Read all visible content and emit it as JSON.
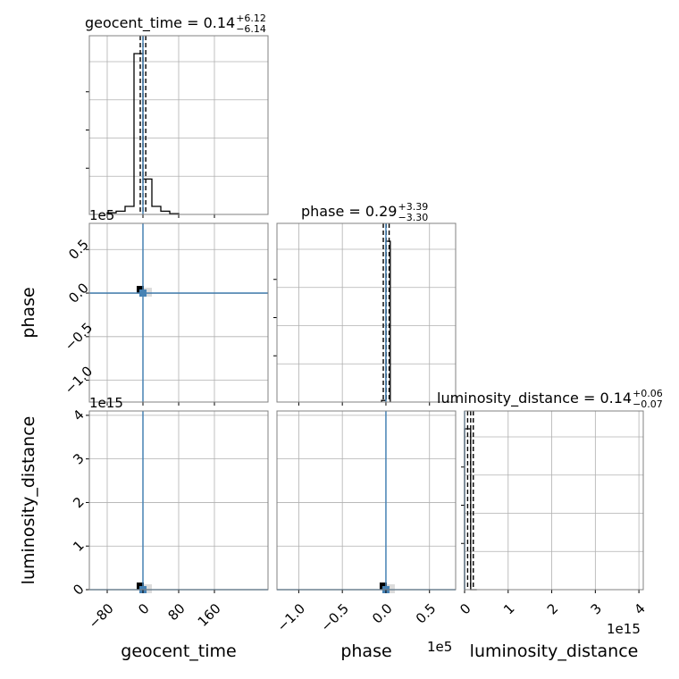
{
  "chart_data": {
    "type": "corner",
    "parameters": [
      "geocent_time",
      "phase",
      "luminosity_distance"
    ],
    "xlabels": [
      "geocent_time",
      "phase",
      "luminosity_distance"
    ],
    "ylabels": [
      "phase",
      "luminosity_distance"
    ],
    "titles": {
      "geocent_time": {
        "label": "geocent_time",
        "median": "0.14",
        "plus": "+6.12",
        "minus": "−6.14"
      },
      "phase": {
        "label": "phase",
        "median": "0.29",
        "plus": "+3.39",
        "minus": "−3.30"
      },
      "luminosity_distance": {
        "label": "luminosity_distance",
        "median": "0.14",
        "plus": "+0.06",
        "minus": "−0.07"
      }
    },
    "axes": {
      "geocent_time": {
        "range": [
          -120,
          280
        ],
        "ticks": [
          -80,
          0,
          80,
          160
        ],
        "tick_labels": [
          "−80",
          "0",
          "80",
          "160"
        ]
      },
      "phase": {
        "range": [
          -125000,
          80000
        ],
        "ticks": [
          -100000,
          -50000,
          0,
          50000
        ],
        "tick_labels": [
          "−1.0",
          "−0.5",
          "0.0",
          "0.5"
        ],
        "offset_text": "1e5"
      },
      "luminosity_distance": {
        "range": [
          0,
          4100000000000000.0
        ],
        "ticks": [
          0,
          1000000000000000.0,
          2000000000000000.0,
          3000000000000000.0,
          4000000000000000.0
        ],
        "tick_labels": [
          "0",
          "1",
          "2",
          "3",
          "4"
        ],
        "offset_text": "1e15"
      }
    },
    "histograms": {
      "geocent_time": {
        "bin_edges": [
          -80,
          -60,
          -40,
          -20,
          0,
          20,
          40,
          60,
          80
        ],
        "counts": [
          0.01,
          0.02,
          0.05,
          1.0,
          0.22,
          0.05,
          0.02,
          0.005
        ],
        "quantiles": [
          -6,
          0.14,
          6.26
        ]
      },
      "phase": {
        "bin_edges": [
          -5000,
          0,
          5000
        ],
        "counts": [
          0.01,
          1.0
        ],
        "quantiles": [
          -3000,
          290,
          3700
        ]
      },
      "luminosity_distance": {
        "bin_edges": [
          0,
          140000000000000.0,
          280000000000000.0
        ],
        "counts": [
          1.0,
          0.0
        ],
        "quantiles": [
          70000000000000.0,
          140000000000000.0,
          200000000000000.0
        ]
      }
    },
    "truths": {
      "geocent_time": 0,
      "phase": 0,
      "luminosity_distance": 0
    },
    "truth_color": "#4682b4",
    "hist_color": "#000000",
    "grid": true
  }
}
